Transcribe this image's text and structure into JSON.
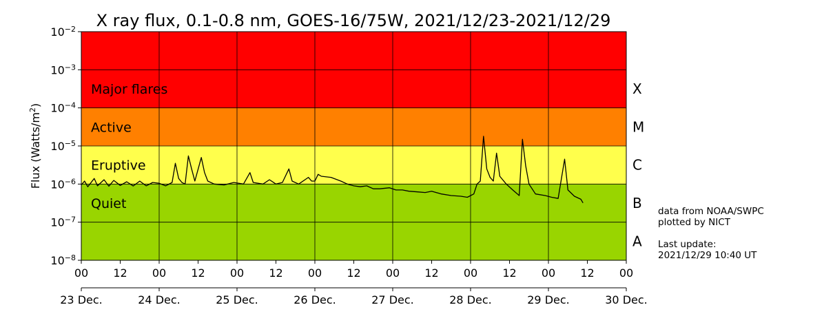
{
  "chart_data": {
    "type": "line",
    "title": "X ray flux, 0.1-0.8 nm, GOES-16/75W, 2021/12/23-2021/12/29",
    "ylabel": {
      "text": "Flux (Watts/m",
      "sup": "2",
      "close": ")"
    },
    "y_scale": "log",
    "ylim": [
      1e-08,
      0.01
    ],
    "y_ticks": [
      {
        "value": 1e-08,
        "base": "10",
        "exp": "−8"
      },
      {
        "value": 1e-07,
        "base": "10",
        "exp": "−7"
      },
      {
        "value": 1e-06,
        "base": "10",
        "exp": "−6"
      },
      {
        "value": 1e-05,
        "base": "10",
        "exp": "−5"
      },
      {
        "value": 0.0001,
        "base": "10",
        "exp": "−4"
      },
      {
        "value": 0.001,
        "base": "10",
        "exp": "−3"
      },
      {
        "value": 0.01,
        "base": "10",
        "exp": "−2"
      }
    ],
    "xlim": [
      "2021-12-23 00:00",
      "2021-12-30 00:00"
    ],
    "hour_ticks": [
      {
        "t": "2021-12-23 00:00",
        "label": "00"
      },
      {
        "t": "2021-12-23 12:00",
        "label": "12"
      },
      {
        "t": "2021-12-24 00:00",
        "label": "00"
      },
      {
        "t": "2021-12-24 12:00",
        "label": "12"
      },
      {
        "t": "2021-12-25 00:00",
        "label": "00"
      },
      {
        "t": "2021-12-25 12:00",
        "label": "12"
      },
      {
        "t": "2021-12-26 00:00",
        "label": "00"
      },
      {
        "t": "2021-12-26 12:00",
        "label": "12"
      },
      {
        "t": "2021-12-27 00:00",
        "label": "00"
      },
      {
        "t": "2021-12-27 12:00",
        "label": "12"
      },
      {
        "t": "2021-12-28 00:00",
        "label": "00"
      },
      {
        "t": "2021-12-28 12:00",
        "label": "12"
      },
      {
        "t": "2021-12-29 00:00",
        "label": "00"
      },
      {
        "t": "2021-12-29 12:00",
        "label": "12"
      },
      {
        "t": "2021-12-30 00:00",
        "label": "00"
      }
    ],
    "day_ticks": [
      {
        "t": "2021-12-23 00:00",
        "label": "23 Dec."
      },
      {
        "t": "2021-12-24 00:00",
        "label": "24 Dec."
      },
      {
        "t": "2021-12-25 00:00",
        "label": "25 Dec."
      },
      {
        "t": "2021-12-26 00:00",
        "label": "26 Dec."
      },
      {
        "t": "2021-12-27 00:00",
        "label": "27 Dec."
      },
      {
        "t": "2021-12-28 00:00",
        "label": "28 Dec."
      },
      {
        "t": "2021-12-29 00:00",
        "label": "29 Dec."
      },
      {
        "t": "2021-12-30 00:00",
        "label": "30 Dec."
      }
    ],
    "grid": true,
    "bands": [
      {
        "name": "Quiet",
        "range": [
          1e-08,
          1e-06
        ],
        "color": "#99d500"
      },
      {
        "name": "Eruptive",
        "range": [
          1e-06,
          1e-05
        ],
        "color": "#ffff4c"
      },
      {
        "name": "Active",
        "range": [
          1e-05,
          0.0001
        ],
        "color": "#ff8000"
      },
      {
        "name": "Major flares",
        "range": [
          0.0001,
          0.01
        ],
        "color": "#ff0000"
      }
    ],
    "class_labels": [
      {
        "label": "A",
        "range": [
          1e-08,
          1e-07
        ]
      },
      {
        "label": "B",
        "range": [
          1e-07,
          1e-06
        ]
      },
      {
        "label": "C",
        "range": [
          1e-06,
          1e-05
        ]
      },
      {
        "label": "M",
        "range": [
          1e-05,
          0.0001
        ]
      },
      {
        "label": "X",
        "range": [
          0.0001,
          0.001
        ]
      }
    ],
    "series": [
      {
        "color": "#000000",
        "points": [
          [
            "2021-12-23 00:00",
            9.5e-07
          ],
          [
            "2021-12-23 01:00",
            1.2e-06
          ],
          [
            "2021-12-23 02:00",
            8.5e-07
          ],
          [
            "2021-12-23 04:00",
            1.4e-06
          ],
          [
            "2021-12-23 05:00",
            9e-07
          ],
          [
            "2021-12-23 07:00",
            1.3e-06
          ],
          [
            "2021-12-23 08:30",
            8.8e-07
          ],
          [
            "2021-12-23 10:00",
            1.25e-06
          ],
          [
            "2021-12-23 12:00",
            9.2e-07
          ],
          [
            "2021-12-23 14:00",
            1.15e-06
          ],
          [
            "2021-12-23 16:00",
            8.9e-07
          ],
          [
            "2021-12-23 18:00",
            1.2e-06
          ],
          [
            "2021-12-23 20:00",
            9e-07
          ],
          [
            "2021-12-23 22:00",
            1.1e-06
          ],
          [
            "2021-12-24 00:00",
            1.05e-06
          ],
          [
            "2021-12-24 02:00",
            9e-07
          ],
          [
            "2021-12-24 04:00",
            1.1e-06
          ],
          [
            "2021-12-24 05:00",
            3.5e-06
          ],
          [
            "2021-12-24 06:00",
            1.4e-06
          ],
          [
            "2021-12-24 07:00",
            1.1e-06
          ],
          [
            "2021-12-24 08:00",
            1e-06
          ],
          [
            "2021-12-24 09:00",
            5.5e-06
          ],
          [
            "2021-12-24 10:00",
            2.5e-06
          ],
          [
            "2021-12-24 11:00",
            1.2e-06
          ],
          [
            "2021-12-24 13:00",
            5e-06
          ],
          [
            "2021-12-24 14:00",
            2e-06
          ],
          [
            "2021-12-24 15:00",
            1.2e-06
          ],
          [
            "2021-12-24 17:00",
            1e-06
          ],
          [
            "2021-12-24 20:00",
            9.5e-07
          ],
          [
            "2021-12-24 23:00",
            1.1e-06
          ],
          [
            "2021-12-25 02:00",
            1e-06
          ],
          [
            "2021-12-25 04:00",
            2e-06
          ],
          [
            "2021-12-25 05:00",
            1.1e-06
          ],
          [
            "2021-12-25 08:00",
            1e-06
          ],
          [
            "2021-12-25 10:00",
            1.3e-06
          ],
          [
            "2021-12-25 12:00",
            1e-06
          ],
          [
            "2021-12-25 14:00",
            1.1e-06
          ],
          [
            "2021-12-25 16:00",
            2.5e-06
          ],
          [
            "2021-12-25 17:00",
            1.2e-06
          ],
          [
            "2021-12-25 19:00",
            1e-06
          ],
          [
            "2021-12-25 22:00",
            1.5e-06
          ],
          [
            "2021-12-25 23:00",
            1.2e-06
          ],
          [
            "2021-12-26 00:00",
            1.2e-06
          ],
          [
            "2021-12-26 01:00",
            1.8e-06
          ],
          [
            "2021-12-26 02:00",
            1.6e-06
          ],
          [
            "2021-12-26 05:00",
            1.5e-06
          ],
          [
            "2021-12-26 08:00",
            1.2e-06
          ],
          [
            "2021-12-26 10:00",
            1e-06
          ],
          [
            "2021-12-26 12:00",
            9e-07
          ],
          [
            "2021-12-26 14:00",
            8.5e-07
          ],
          [
            "2021-12-26 16:00",
            9e-07
          ],
          [
            "2021-12-26 18:00",
            7.5e-07
          ],
          [
            "2021-12-26 20:00",
            7.5e-07
          ],
          [
            "2021-12-26 23:00",
            8e-07
          ],
          [
            "2021-12-27 01:00",
            7e-07
          ],
          [
            "2021-12-27 03:00",
            7e-07
          ],
          [
            "2021-12-27 05:00",
            6.5e-07
          ],
          [
            "2021-12-27 08:00",
            6.2e-07
          ],
          [
            "2021-12-27 10:00",
            6e-07
          ],
          [
            "2021-12-27 12:00",
            6.5e-07
          ],
          [
            "2021-12-27 15:00",
            5.5e-07
          ],
          [
            "2021-12-27 18:00",
            5e-07
          ],
          [
            "2021-12-27 21:00",
            4.8e-07
          ],
          [
            "2021-12-27 23:00",
            4.5e-07
          ],
          [
            "2021-12-28 01:00",
            5.5e-07
          ],
          [
            "2021-12-28 02:00",
            1e-06
          ],
          [
            "2021-12-28 03:00",
            1.2e-06
          ],
          [
            "2021-12-28 04:00",
            1.8e-05
          ],
          [
            "2021-12-28 05:00",
            2.5e-06
          ],
          [
            "2021-12-28 06:00",
            1.5e-06
          ],
          [
            "2021-12-28 07:00",
            1.2e-06
          ],
          [
            "2021-12-28 08:00",
            6.5e-06
          ],
          [
            "2021-12-28 09:00",
            1.6e-06
          ],
          [
            "2021-12-28 11:00",
            1e-06
          ],
          [
            "2021-12-28 13:00",
            7e-07
          ],
          [
            "2021-12-28 15:00",
            5e-07
          ],
          [
            "2021-12-28 16:00",
            1.5e-05
          ],
          [
            "2021-12-28 17:00",
            3e-06
          ],
          [
            "2021-12-28 18:00",
            1e-06
          ],
          [
            "2021-12-28 20:00",
            5.5e-07
          ],
          [
            "2021-12-28 23:00",
            5e-07
          ],
          [
            "2021-12-29 01:00",
            4.5e-07
          ],
          [
            "2021-12-29 03:00",
            4.2e-07
          ],
          [
            "2021-12-29 05:00",
            4.5e-06
          ],
          [
            "2021-12-29 06:00",
            7e-07
          ],
          [
            "2021-12-29 08:00",
            4.8e-07
          ],
          [
            "2021-12-29 10:00",
            4e-07
          ],
          [
            "2021-12-29 10:40",
            3.2e-07
          ]
        ]
      }
    ]
  },
  "notes": {
    "source": "data from NOAA/SWPC",
    "plotted_by": "plotted by NICT",
    "last_update_label": "Last update:",
    "last_update_value": "2021/12/29 10:40 UT"
  }
}
